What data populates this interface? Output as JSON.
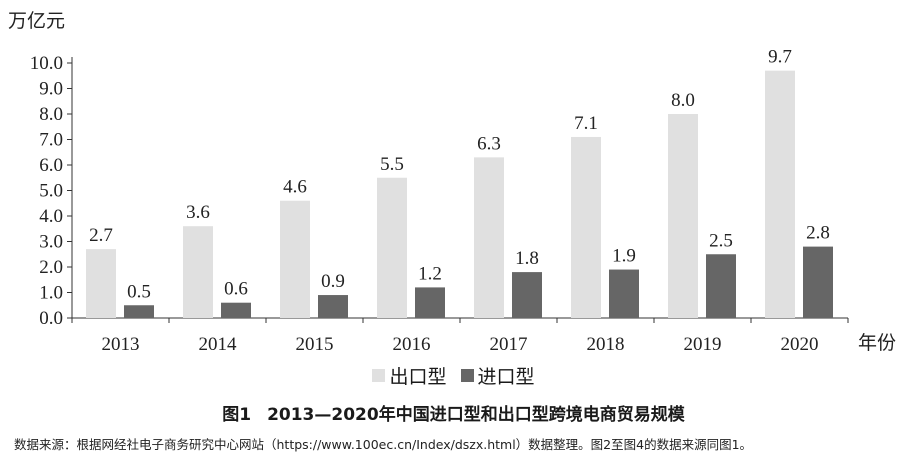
{
  "chart_data": {
    "type": "bar",
    "ylabel": "万亿元",
    "xlabel": "年份",
    "categories": [
      "2013",
      "2014",
      "2015",
      "2016",
      "2017",
      "2018",
      "2019",
      "2020"
    ],
    "series": [
      {
        "name": "出口型",
        "color": "#e0e0e0",
        "values": [
          2.7,
          3.6,
          4.6,
          5.5,
          6.3,
          7.1,
          8.0,
          9.7
        ]
      },
      {
        "name": "进口型",
        "color": "#666666",
        "values": [
          0.5,
          0.6,
          0.9,
          1.2,
          1.8,
          1.9,
          2.5,
          2.8
        ]
      }
    ],
    "ylim": [
      0,
      10
    ],
    "yticks": [
      "0.0",
      "1.0",
      "2.0",
      "3.0",
      "4.0",
      "5.0",
      "6.0",
      "7.0",
      "8.0",
      "9.0",
      "10.0"
    ],
    "legend_position": "bottom-center"
  },
  "caption": {
    "figure_no": "图1",
    "title": "2013—2020年中国进口型和出口型跨境电商贸易规模"
  },
  "source_note": "数据来源：根据网经社电子商务研究中心网站（https://www.100ec.cn/Index/dszx.html）数据整理。图2至图4的数据来源同图1。"
}
